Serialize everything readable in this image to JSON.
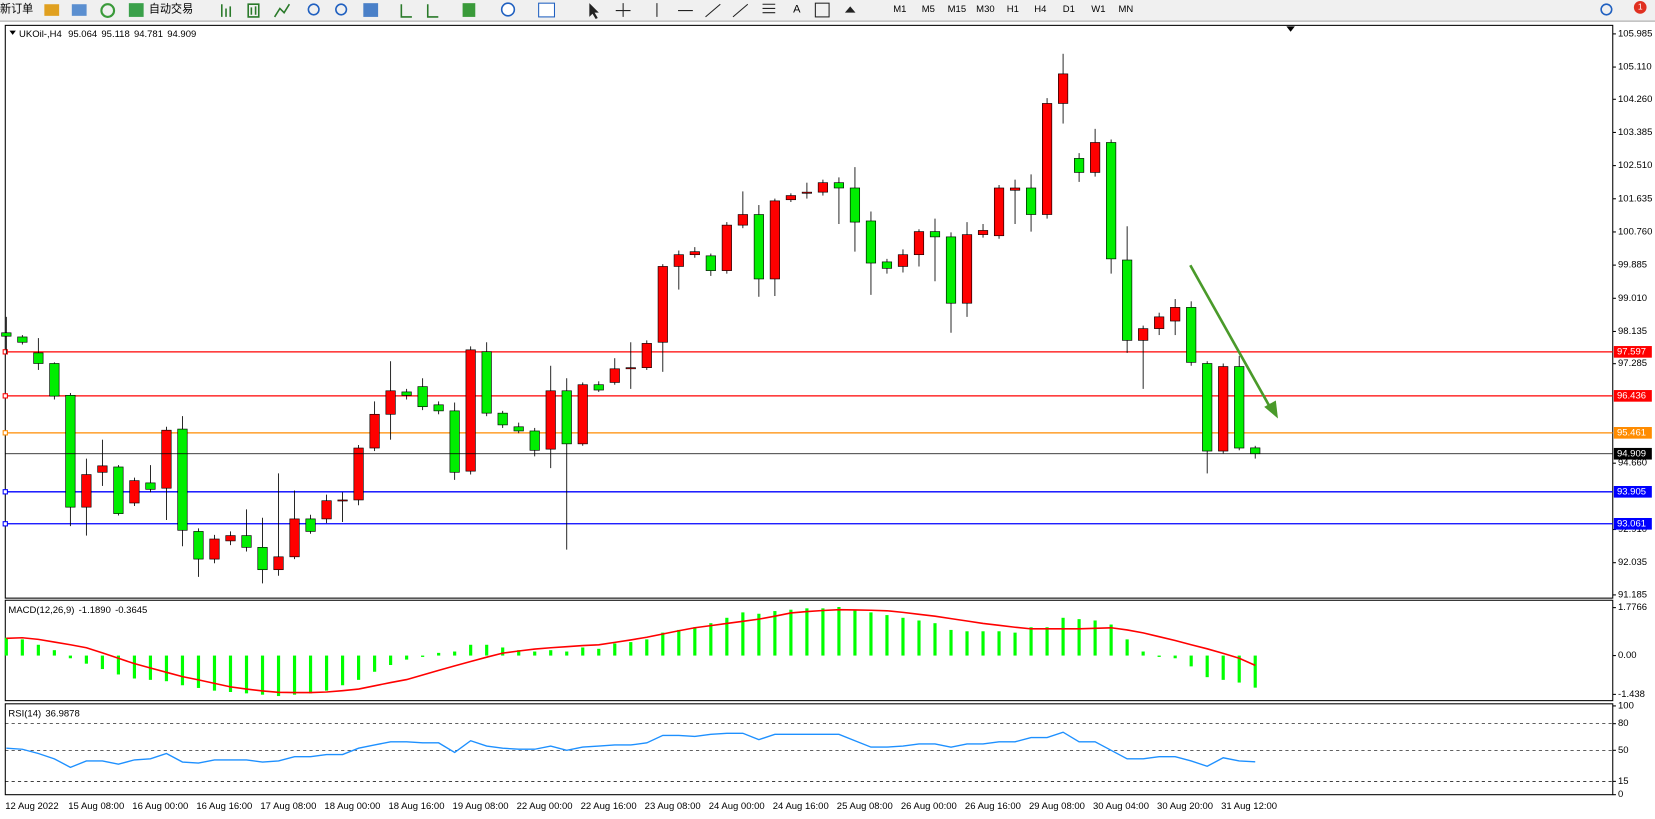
{
  "toolbar": {
    "new_order": "新订单",
    "auto_trading": "自动交易",
    "timeframes": [
      "M1",
      "M5",
      "M15",
      "M30",
      "H1",
      "H4",
      "D1",
      "W1",
      "MN"
    ],
    "alerts": "1"
  },
  "chart_data": [
    {
      "type": "candlestick",
      "symbol": "UKOil-,H4",
      "categories": [
        "12 Aug 2022",
        null,
        null,
        null,
        "15 Aug 08:00",
        null,
        null,
        null,
        "16 Aug 00:00",
        null,
        null,
        null,
        "16 Aug 16:00",
        null,
        null,
        null,
        "17 Aug 08:00",
        null,
        null,
        null,
        "18 Aug 00:00",
        null,
        null,
        null,
        "18 Aug 16:00",
        null,
        null,
        null,
        "19 Aug 08:00",
        null,
        null,
        null,
        "22 Aug 00:00",
        null,
        null,
        null,
        "22 Aug 16:00",
        null,
        null,
        null,
        "23 Aug 08:00",
        null,
        null,
        null,
        "24 Aug 00:00",
        null,
        null,
        null,
        "24 Aug 16:00",
        null,
        null,
        null,
        "25 Aug 08:00",
        null,
        null,
        null,
        "26 Aug 00:00",
        null,
        null,
        null,
        "26 Aug 16:00",
        null,
        null,
        null,
        "29 Aug 08:00",
        null,
        null,
        null,
        "30 Aug 04:00",
        null,
        null,
        null,
        "30 Aug 20:00",
        null,
        null,
        null,
        "31 Aug 12:00",
        null,
        null
      ],
      "open": [
        98.1,
        97.99,
        97.57,
        97.29,
        96.45,
        93.5,
        94.42,
        94.56,
        93.61,
        94.14,
        94.0,
        95.56,
        92.86,
        92.13,
        92.61,
        92.75,
        92.44,
        91.85,
        92.19,
        93.19,
        93.19,
        93.67,
        93.69,
        95.06,
        95.95,
        96.54,
        96.68,
        96.2,
        96.04,
        94.45,
        97.6,
        95.98,
        95.62,
        95.51,
        95.03,
        96.57,
        95.17,
        96.73,
        96.79,
        97.15,
        97.18,
        97.85,
        99.85,
        100.16,
        100.13,
        99.74,
        100.94,
        101.22,
        99.52,
        101.61,
        101.78,
        101.81,
        102.06,
        101.92,
        101.05,
        99.97,
        99.85,
        100.16,
        100.77,
        100.63,
        98.88,
        100.69,
        100.66,
        101.86,
        101.92,
        101.22,
        104.15,
        102.7,
        102.33,
        103.12,
        100.02,
        97.9,
        98.21,
        98.41,
        98.77,
        97.29,
        94.98,
        97.21,
        95.064
      ],
      "high": [
        98.52,
        98.04,
        97.96,
        97.32,
        96.51,
        94.78,
        95.28,
        94.61,
        94.28,
        94.61,
        95.62,
        95.9,
        92.94,
        92.77,
        92.86,
        93.44,
        93.22,
        94.39,
        93.94,
        93.3,
        93.83,
        93.89,
        95.14,
        96.29,
        97.35,
        96.62,
        96.9,
        96.29,
        96.26,
        97.74,
        97.85,
        96.04,
        95.73,
        95.59,
        97.23,
        96.9,
        96.79,
        96.82,
        97.43,
        97.85,
        97.9,
        99.91,
        100.27,
        100.36,
        100.19,
        101.02,
        101.83,
        101.47,
        101.64,
        101.78,
        102.06,
        102.14,
        102.2,
        102.47,
        101.3,
        100.05,
        100.3,
        100.83,
        101.11,
        100.75,
        101.02,
        100.97,
        102.0,
        102.14,
        102.28,
        104.29,
        105.46,
        102.84,
        103.48,
        103.2,
        100.91,
        98.29,
        98.63,
        98.99,
        98.93,
        97.35,
        97.29,
        97.49,
        95.118
      ],
      "low": [
        97.54,
        97.79,
        97.12,
        96.34,
        93.0,
        92.75,
        94.06,
        93.28,
        93.53,
        93.89,
        93.16,
        92.47,
        91.66,
        92.02,
        92.5,
        92.33,
        91.49,
        91.69,
        92.13,
        92.8,
        93.08,
        93.11,
        93.55,
        94.98,
        95.28,
        96.34,
        96.06,
        95.95,
        94.22,
        94.36,
        95.9,
        95.59,
        95.45,
        94.84,
        94.53,
        92.38,
        95.12,
        96.54,
        96.73,
        96.62,
        97.12,
        97.07,
        99.24,
        100.08,
        99.6,
        99.66,
        100.86,
        99.05,
        99.07,
        101.55,
        101.64,
        101.72,
        100.97,
        100.24,
        99.1,
        99.66,
        99.69,
        99.85,
        99.46,
        98.1,
        98.52,
        100.61,
        100.58,
        100.97,
        100.77,
        101.11,
        103.62,
        102.08,
        102.22,
        99.66,
        97.57,
        96.62,
        98.04,
        98.04,
        97.23,
        94.39,
        94.92,
        95.0,
        94.781
      ],
      "close": [
        98.01,
        97.85,
        97.29,
        96.43,
        93.5,
        94.36,
        94.59,
        93.33,
        94.2,
        93.97,
        95.53,
        92.89,
        92.13,
        92.66,
        92.75,
        92.44,
        91.85,
        92.19,
        93.19,
        92.86,
        93.67,
        93.69,
        95.06,
        95.95,
        96.57,
        96.45,
        96.15,
        96.04,
        94.42,
        97.65,
        95.98,
        95.67,
        95.51,
        95.0,
        96.57,
        95.17,
        96.73,
        96.59,
        97.15,
        97.18,
        97.82,
        99.85,
        100.16,
        100.24,
        99.74,
        100.94,
        101.22,
        99.52,
        101.58,
        101.72,
        101.81,
        102.06,
        101.92,
        101.02,
        99.94,
        99.8,
        100.16,
        100.77,
        100.63,
        98.88,
        100.69,
        100.8,
        101.92,
        101.92,
        101.22,
        104.15,
        104.93,
        102.33,
        103.12,
        100.05,
        97.9,
        98.21,
        98.52,
        98.77,
        97.32,
        94.98,
        97.21,
        95.06,
        94.909
      ],
      "up_color": "#ff0000",
      "down_color": "#00ee00",
      "ylim": [
        91.1,
        106.21
      ],
      "yticks": [
        105.985,
        {
          "value": 105.11,
          "label": "105.110"
        },
        {
          "value": 104.26,
          "label": "104.260"
        },
        103.385,
        {
          "value": 102.51,
          "label": "102.510"
        },
        101.635,
        {
          "value": 100.76,
          "label": "100.760"
        },
        99.885,
        {
          "value": 99.01,
          "label": "99.010"
        },
        98.135,
        97.285,
        {
          "value": 94.66,
          "label": "94.660"
        },
        {
          "value": 92.91,
          "label": "92.910"
        },
        92.035,
        91.185
      ],
      "levels": [
        {
          "value": 97.597,
          "color": "#ff0000"
        },
        {
          "value": 96.436,
          "color": "#ff0000"
        },
        {
          "value": 95.461,
          "color": "#ff8c00"
        },
        {
          "value": 93.905,
          "color": "#0000ff"
        },
        {
          "value": 93.061,
          "color": "#0000ff"
        }
      ]
    },
    {
      "type": "macd",
      "label": "MACD(12,26,9)",
      "readout": [
        "-1.1890",
        "-0.3645"
      ],
      "ylim": [
        -1.67,
        2.05
      ],
      "yticks": [
        1.7766,
        {
          "value": 0,
          "label": "0.00"
        },
        -1.438
      ],
      "series": [
        {
          "color": "#00ff00",
          "values": [
            0.66,
            0.6,
            0.4,
            0.2,
            -0.1,
            -0.3,
            -0.5,
            -0.7,
            -0.85,
            -0.9,
            -0.95,
            -1.1,
            -1.2,
            -1.3,
            -1.35,
            -1.4,
            -1.45,
            -1.5,
            -1.45,
            -1.4,
            -1.3,
            -1.1,
            -0.9,
            -0.6,
            -0.35,
            -0.15,
            -0.05,
            0.1,
            0.15,
            0.4,
            0.4,
            0.3,
            0.2,
            0.15,
            0.2,
            0.15,
            0.3,
            0.25,
            0.45,
            0.5,
            0.6,
            0.85,
            0.95,
            1.05,
            1.2,
            1.4,
            1.6,
            1.55,
            1.65,
            1.7,
            1.75,
            1.75,
            1.8,
            1.7,
            1.6,
            1.5,
            1.4,
            1.3,
            1.2,
            0.95,
            0.9,
            0.9,
            0.9,
            0.85,
            1.05,
            1.05,
            1.4,
            1.35,
            1.3,
            1.15,
            0.6,
            0.15,
            -0.05,
            -0.1,
            -0.4,
            -0.8,
            -0.9,
            -1.0,
            -1.189
          ]
        },
        {
          "color": "#ff0000",
          "values": [
            0.64,
            0.66,
            0.6,
            0.5,
            0.4,
            0.29,
            0.1,
            -0.1,
            -0.3,
            -0.46,
            -0.62,
            -0.78,
            -0.9,
            -1.03,
            -1.16,
            -1.24,
            -1.31,
            -1.36,
            -1.37,
            -1.37,
            -1.35,
            -1.3,
            -1.24,
            -1.12,
            -1.0,
            -0.89,
            -0.72,
            -0.55,
            -0.38,
            -0.22,
            -0.06,
            0.09,
            0.17,
            0.24,
            0.29,
            0.33,
            0.37,
            0.4,
            0.49,
            0.58,
            0.68,
            0.8,
            0.92,
            1.03,
            1.11,
            1.19,
            1.27,
            1.35,
            1.46,
            1.58,
            1.63,
            1.67,
            1.7,
            1.69,
            1.68,
            1.66,
            1.6,
            1.53,
            1.46,
            1.37,
            1.28,
            1.19,
            1.12,
            1.05,
            0.99,
            0.99,
            0.99,
            0.99,
            1.01,
            1.03,
            0.95,
            0.84,
            0.7,
            0.56,
            0.4,
            0.25,
            0.08,
            -0.1,
            -0.3645
          ]
        }
      ]
    },
    {
      "type": "rsi",
      "label": "RSI(14)",
      "color": "#1e90ff",
      "ylim": [
        0,
        100
      ],
      "yticks": [
        100,
        80,
        50,
        15,
        0
      ],
      "values": [
        52.4,
        51.2,
        46.4,
        40.4,
        30.8,
        38,
        38,
        34.4,
        39.2,
        40.4,
        46.4,
        36.8,
        35.6,
        39.2,
        39.2,
        39.2,
        36.8,
        38,
        42.8,
        42.8,
        45.2,
        45.2,
        52.4,
        56,
        59.6,
        59.6,
        58.4,
        58.4,
        47.6,
        60.8,
        54.8,
        52.4,
        51.2,
        51.2,
        54.8,
        50,
        53.6,
        54.8,
        56,
        56,
        58.4,
        66.8,
        66.8,
        65.6,
        68,
        69.2,
        69.2,
        62,
        68,
        68,
        68,
        68,
        68,
        60.8,
        53.6,
        53.6,
        54.8,
        57.2,
        57.2,
        53.6,
        57.2,
        57.2,
        59.6,
        59.6,
        64.4,
        64.4,
        70.4,
        59.6,
        59.6,
        50,
        40.4,
        40.4,
        42.8,
        42.8,
        38,
        32,
        41.6,
        38,
        36.9878
      ]
    }
  ]
}
